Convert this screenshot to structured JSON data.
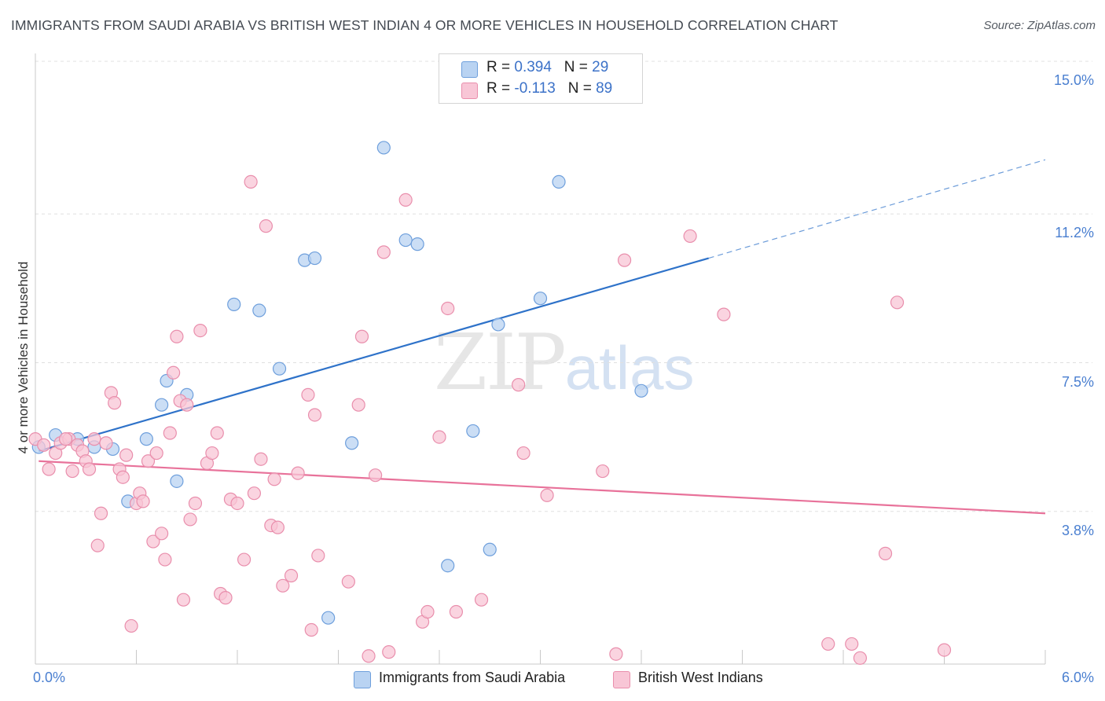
{
  "title": "IMMIGRANTS FROM SAUDI ARABIA VS BRITISH WEST INDIAN 4 OR MORE VEHICLES IN HOUSEHOLD CORRELATION CHART",
  "source": "Source: ZipAtlas.com",
  "watermark": {
    "zip": "ZIP",
    "atlas": "atlas"
  },
  "colors": {
    "blue_fill": "#b9d3f2",
    "blue_stroke": "#6e9fdc",
    "blue_line": "#2e72c9",
    "pink_fill": "#f8c6d6",
    "pink_stroke": "#e98eac",
    "pink_line": "#e8729a",
    "axis_label": "#4a7fd0",
    "grid": "#e0e0e0"
  },
  "stats": {
    "row1": {
      "r_label": "R = ",
      "r": "0.394",
      "n_label": "N = ",
      "n": "29"
    },
    "row2": {
      "r_label": "R = ",
      "r": "-0.113",
      "n_label": "N = ",
      "n": "89"
    }
  },
  "legend": {
    "blue": "Immigrants from Saudi Arabia",
    "pink": "British West Indians"
  },
  "chart_data": {
    "type": "scatter",
    "ylabel": "4 or more Vehicles in Household",
    "xlim": [
      0,
      6.0
    ],
    "ylim": [
      0,
      15.0
    ],
    "x_tick_labels": [
      "0.0%",
      "6.0%"
    ],
    "y_ticks": [
      {
        "value": 3.8,
        "label": "3.8%"
      },
      {
        "value": 7.5,
        "label": "7.5%"
      },
      {
        "value": 11.2,
        "label": "11.2%"
      },
      {
        "value": 15.0,
        "label": "15.0%"
      }
    ],
    "series": [
      {
        "name": "Immigrants from Saudi Arabia",
        "color_key": "blue",
        "points": [
          [
            0.02,
            5.4
          ],
          [
            0.12,
            5.7
          ],
          [
            0.25,
            5.6
          ],
          [
            0.35,
            5.4
          ],
          [
            0.46,
            5.35
          ],
          [
            0.66,
            5.6
          ],
          [
            0.78,
            7.05
          ],
          [
            0.84,
            4.55
          ],
          [
            0.9,
            6.7
          ],
          [
            0.55,
            4.05
          ],
          [
            0.75,
            6.45
          ],
          [
            1.18,
            8.95
          ],
          [
            1.33,
            8.8
          ],
          [
            1.45,
            7.35
          ],
          [
            1.6,
            10.05
          ],
          [
            1.66,
            10.1
          ],
          [
            1.74,
            1.15
          ],
          [
            1.88,
            5.5
          ],
          [
            2.07,
            12.85
          ],
          [
            2.2,
            10.55
          ],
          [
            2.27,
            10.45
          ],
          [
            2.45,
            2.45
          ],
          [
            2.6,
            5.8
          ],
          [
            2.7,
            2.85
          ],
          [
            2.75,
            8.45
          ],
          [
            3.0,
            9.1
          ],
          [
            3.11,
            12.0
          ],
          [
            3.24,
            14.8
          ],
          [
            3.6,
            6.8
          ]
        ],
        "trend": {
          "x0": 0.02,
          "y0": 5.3,
          "x1": 4.0,
          "y1": 10.1,
          "dash_to_x": 6.0,
          "dash_to_y": 12.55
        }
      },
      {
        "name": "British West Indians",
        "color_key": "pink",
        "points": [
          [
            0.0,
            5.6
          ],
          [
            0.05,
            5.45
          ],
          [
            0.08,
            4.85
          ],
          [
            0.12,
            5.25
          ],
          [
            0.15,
            5.5
          ],
          [
            0.2,
            5.6
          ],
          [
            0.22,
            4.8
          ],
          [
            0.25,
            5.45
          ],
          [
            0.28,
            5.3
          ],
          [
            0.3,
            5.05
          ],
          [
            0.32,
            4.85
          ],
          [
            0.35,
            5.6
          ],
          [
            0.37,
            2.95
          ],
          [
            0.39,
            3.75
          ],
          [
            0.42,
            5.5
          ],
          [
            0.45,
            6.75
          ],
          [
            0.47,
            6.5
          ],
          [
            0.5,
            4.85
          ],
          [
            0.52,
            4.65
          ],
          [
            0.54,
            5.2
          ],
          [
            0.57,
            0.95
          ],
          [
            0.6,
            4.0
          ],
          [
            0.62,
            4.25
          ],
          [
            0.64,
            4.05
          ],
          [
            0.67,
            5.05
          ],
          [
            0.7,
            3.05
          ],
          [
            0.72,
            5.25
          ],
          [
            0.75,
            3.25
          ],
          [
            0.77,
            2.6
          ],
          [
            0.8,
            5.75
          ],
          [
            0.82,
            7.25
          ],
          [
            0.84,
            8.15
          ],
          [
            0.86,
            6.55
          ],
          [
            0.88,
            1.6
          ],
          [
            0.9,
            6.45
          ],
          [
            0.92,
            3.6
          ],
          [
            0.95,
            4.0
          ],
          [
            0.98,
            8.3
          ],
          [
            1.02,
            5.0
          ],
          [
            1.05,
            5.25
          ],
          [
            1.08,
            5.75
          ],
          [
            1.1,
            1.75
          ],
          [
            1.13,
            1.65
          ],
          [
            1.16,
            4.1
          ],
          [
            1.2,
            4.0
          ],
          [
            1.24,
            2.6
          ],
          [
            1.28,
            12.0
          ],
          [
            1.3,
            4.25
          ],
          [
            1.34,
            5.1
          ],
          [
            1.37,
            10.9
          ],
          [
            1.4,
            3.45
          ],
          [
            1.42,
            4.6
          ],
          [
            1.44,
            3.4
          ],
          [
            1.47,
            1.95
          ],
          [
            1.52,
            2.2
          ],
          [
            1.56,
            4.75
          ],
          [
            1.62,
            6.7
          ],
          [
            1.64,
            0.85
          ],
          [
            1.66,
            6.2
          ],
          [
            1.68,
            2.7
          ],
          [
            1.86,
            2.05
          ],
          [
            1.92,
            6.45
          ],
          [
            1.94,
            8.15
          ],
          [
            1.98,
            0.2
          ],
          [
            2.02,
            4.7
          ],
          [
            2.07,
            10.25
          ],
          [
            2.1,
            0.3
          ],
          [
            2.2,
            11.55
          ],
          [
            2.3,
            1.05
          ],
          [
            2.33,
            1.3
          ],
          [
            2.45,
            8.85
          ],
          [
            2.5,
            1.3
          ],
          [
            2.4,
            5.65
          ],
          [
            2.65,
            1.6
          ],
          [
            2.87,
            6.95
          ],
          [
            2.9,
            5.25
          ],
          [
            3.04,
            4.2
          ],
          [
            3.37,
            4.8
          ],
          [
            3.45,
            0.25
          ],
          [
            3.5,
            10.05
          ],
          [
            3.89,
            10.65
          ],
          [
            4.09,
            8.7
          ],
          [
            4.71,
            0.5
          ],
          [
            4.85,
            0.5
          ],
          [
            4.9,
            0.15
          ],
          [
            5.05,
            2.75
          ],
          [
            5.12,
            9.0
          ],
          [
            5.4,
            0.35
          ],
          [
            0.18,
            5.6
          ]
        ],
        "trend": {
          "x0": 0.02,
          "y0": 5.05,
          "x1": 6.0,
          "y1": 3.75
        }
      }
    ]
  }
}
